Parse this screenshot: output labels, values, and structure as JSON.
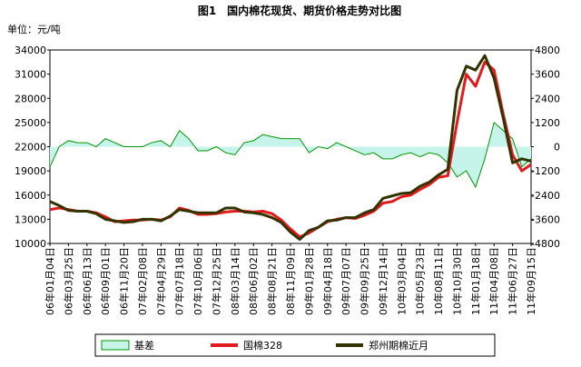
{
  "chart_data": {
    "type": "line",
    "title": "图1　国内棉花现货、期货价格走势对比图",
    "unit_label": "单位：元/吨",
    "categories": [
      "06年01月04日",
      null,
      "06年03月25日",
      null,
      "06年06月13日",
      null,
      "06年09月01日",
      null,
      "06年11月20日",
      null,
      "07年02月08日",
      null,
      "07年04月29日",
      null,
      "07年07月18日",
      null,
      "07年10月06日",
      null,
      "07年12月25日",
      null,
      "08年03月14日",
      null,
      "08年06月02日",
      null,
      "08年08月21日",
      null,
      "08年11月09日",
      null,
      "09年01月28日",
      null,
      "09年04月18日",
      null,
      "09年07月07日",
      null,
      "09年09月25日",
      null,
      "09年12月14日",
      null,
      "10年03月04日",
      null,
      "10年05月23日",
      null,
      "10年08月11日",
      null,
      "10年10月30日",
      null,
      "11年01月18日",
      null,
      "11年04月08日",
      null,
      "11年06月27日",
      null,
      "11年09月15日"
    ],
    "series": [
      {
        "name": "基差",
        "color": "#009900",
        "fill": "#c6f4ea",
        "axis": "y2",
        "values": [
          -1000,
          0,
          300,
          200,
          200,
          0,
          400,
          200,
          0,
          0,
          0,
          200,
          300,
          0,
          800,
          400,
          -200,
          -200,
          0,
          -300,
          -400,
          200,
          300,
          600,
          500,
          400,
          400,
          400,
          -300,
          0,
          -100,
          200,
          0,
          -200,
          -400,
          -300,
          -600,
          -600,
          -400,
          -300,
          -500,
          -300,
          -400,
          -800,
          -1500,
          -1200,
          -2000,
          -600,
          1200,
          800,
          400,
          -1000,
          -600
        ]
      },
      {
        "name": "国棉328",
        "color": "#e31a1c",
        "values": [
          14200,
          14400,
          14200,
          14000,
          14000,
          13800,
          13300,
          12700,
          12800,
          12900,
          12900,
          13000,
          12900,
          13300,
          14400,
          14100,
          13600,
          13600,
          13700,
          13900,
          14000,
          14000,
          13900,
          14000,
          13700,
          12900,
          11800,
          10800,
          11300,
          12000,
          12700,
          13000,
          13200,
          13100,
          13500,
          14000,
          15000,
          15200,
          15800,
          16000,
          16700,
          17300,
          18200,
          18400,
          25000,
          31000,
          29500,
          32500,
          31500,
          26000,
          21000,
          19000,
          19800
        ]
      },
      {
        "name": "郑州期棉近月",
        "color": "#333300",
        "values": [
          15200,
          14700,
          14100,
          14000,
          14000,
          13700,
          13000,
          12800,
          12600,
          12700,
          13000,
          13000,
          12800,
          13400,
          14200,
          14000,
          13800,
          13800,
          13800,
          14400,
          14400,
          13900,
          13800,
          13600,
          13200,
          12600,
          11400,
          10500,
          11600,
          12000,
          12800,
          12900,
          13200,
          13200,
          13800,
          14200,
          15600,
          15900,
          16200,
          16300,
          17100,
          17600,
          18500,
          19200,
          29000,
          32000,
          31500,
          33300,
          30500,
          25500,
          20000,
          20500,
          20200
        ]
      }
    ],
    "ylim": [
      10000,
      34000
    ],
    "yticks": [
      10000,
      13000,
      16000,
      19000,
      22000,
      25000,
      28000,
      31000,
      34000
    ],
    "y2lim": [
      -4800,
      4800
    ],
    "y2ticks": [
      -4800,
      -3600,
      -2400,
      -1200,
      0,
      1200,
      2400,
      3600,
      4800
    ]
  }
}
